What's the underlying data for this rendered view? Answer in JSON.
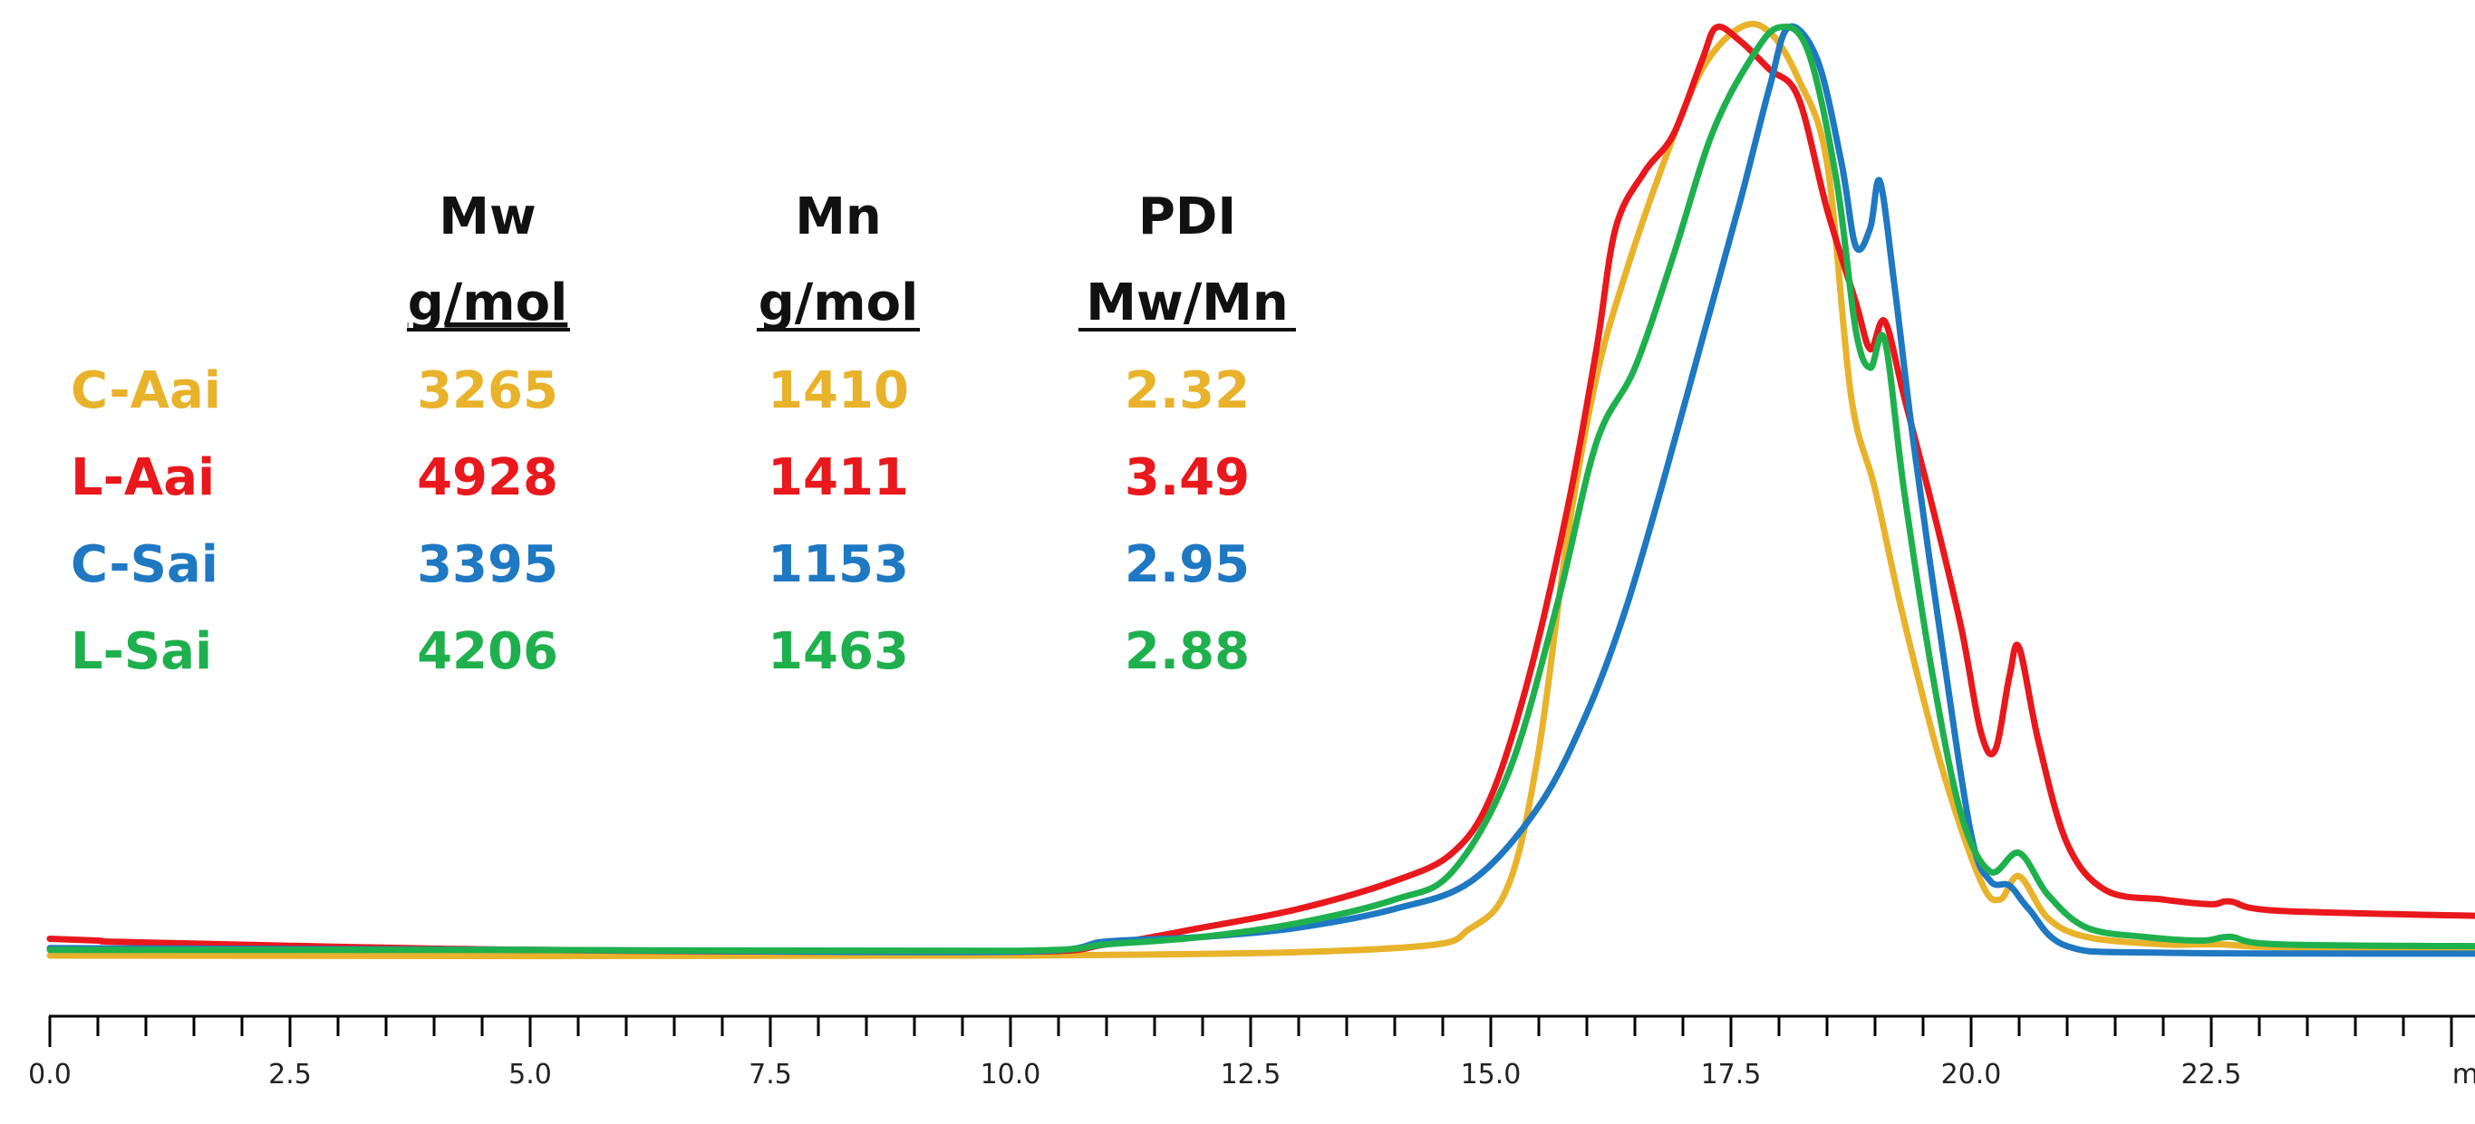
{
  "chart_data": {
    "type": "line",
    "title": "",
    "xlabel": "min",
    "ylabel": "",
    "xlim": [
      0.0,
      25.5
    ],
    "ylim": [
      0,
      100
    ],
    "grid": false,
    "x_ticks_labeled": [
      "0.0",
      "2.5",
      "5.0",
      "7.5",
      "10.0",
      "12.5",
      "15.0",
      "17.5",
      "20.0",
      "22.5"
    ],
    "x_unit_label": "min",
    "minor_tick_step": 0.5,
    "series": [
      {
        "name": "C-Aai",
        "color": "#E8B22A",
        "points": [
          [
            0,
            0
          ],
          [
            10,
            0
          ],
          [
            14,
            0.8
          ],
          [
            14.8,
            3
          ],
          [
            15.2,
            8
          ],
          [
            15.5,
            22
          ],
          [
            15.8,
            45
          ],
          [
            16.1,
            62
          ],
          [
            16.4,
            73
          ],
          [
            16.8,
            85
          ],
          [
            17.2,
            95
          ],
          [
            17.6,
            99.5
          ],
          [
            17.9,
            99
          ],
          [
            18.2,
            94
          ],
          [
            18.5,
            85
          ],
          [
            18.75,
            60
          ],
          [
            19.0,
            50
          ],
          [
            19.3,
            36
          ],
          [
            19.7,
            20
          ],
          [
            20.1,
            8
          ],
          [
            20.3,
            6
          ],
          [
            20.5,
            8.5
          ],
          [
            20.8,
            4
          ],
          [
            21.2,
            2
          ],
          [
            22.0,
            1.2
          ],
          [
            22.6,
            1.2
          ],
          [
            23.2,
            0.9
          ],
          [
            25.5,
            0.8
          ]
        ]
      },
      {
        "name": "L-Aai",
        "color": "#E8181C",
        "points": [
          [
            0,
            1.8
          ],
          [
            0.5,
            1.6
          ],
          [
            1,
            1.4
          ],
          [
            5,
            0.6
          ],
          [
            10,
            0.4
          ],
          [
            11,
            1.2
          ],
          [
            12,
            3
          ],
          [
            13,
            5
          ],
          [
            14,
            8
          ],
          [
            14.6,
            11
          ],
          [
            15.0,
            17
          ],
          [
            15.4,
            30
          ],
          [
            15.8,
            48
          ],
          [
            16.1,
            65
          ],
          [
            16.3,
            78
          ],
          [
            16.6,
            84
          ],
          [
            16.9,
            88
          ],
          [
            17.2,
            96
          ],
          [
            17.35,
            99.5
          ],
          [
            17.6,
            98
          ],
          [
            17.9,
            95
          ],
          [
            18.2,
            92
          ],
          [
            18.5,
            80
          ],
          [
            18.8,
            70
          ],
          [
            18.95,
            65
          ],
          [
            19.1,
            68
          ],
          [
            19.3,
            60
          ],
          [
            19.6,
            48
          ],
          [
            19.9,
            35
          ],
          [
            20.1,
            24
          ],
          [
            20.25,
            22
          ],
          [
            20.4,
            30
          ],
          [
            20.5,
            33
          ],
          [
            20.7,
            23
          ],
          [
            21.0,
            12
          ],
          [
            21.4,
            7
          ],
          [
            22.0,
            6
          ],
          [
            22.5,
            5.5
          ],
          [
            22.7,
            5.8
          ],
          [
            23.2,
            4.8
          ],
          [
            25.5,
            4.2
          ]
        ]
      },
      {
        "name": "C-Sai",
        "color": "#1E78C2",
        "points": [
          [
            0,
            0.8
          ],
          [
            5,
            0.6
          ],
          [
            10,
            0.4
          ],
          [
            11,
            1.5
          ],
          [
            12,
            2
          ],
          [
            13,
            3
          ],
          [
            14,
            5
          ],
          [
            14.8,
            8
          ],
          [
            15.5,
            16
          ],
          [
            16,
            26
          ],
          [
            16.4,
            37
          ],
          [
            16.8,
            51
          ],
          [
            17.2,
            66
          ],
          [
            17.6,
            81
          ],
          [
            17.9,
            93
          ],
          [
            18.1,
            99.5
          ],
          [
            18.4,
            96
          ],
          [
            18.65,
            85
          ],
          [
            18.8,
            76
          ],
          [
            18.95,
            78
          ],
          [
            19.05,
            83
          ],
          [
            19.2,
            72
          ],
          [
            19.4,
            55
          ],
          [
            19.7,
            33
          ],
          [
            20.0,
            13
          ],
          [
            20.2,
            8
          ],
          [
            20.4,
            7.5
          ],
          [
            20.6,
            5
          ],
          [
            21.0,
            1
          ],
          [
            22.0,
            0.3
          ],
          [
            25.5,
            0.2
          ]
        ]
      },
      {
        "name": "L-Sai",
        "color": "#1FB04E",
        "points": [
          [
            0,
            0.6
          ],
          [
            5,
            0.6
          ],
          [
            10,
            0.5
          ],
          [
            11,
            1.2
          ],
          [
            12,
            2
          ],
          [
            13,
            3.5
          ],
          [
            14,
            6
          ],
          [
            14.6,
            9
          ],
          [
            15.2,
            20
          ],
          [
            15.7,
            38
          ],
          [
            16.1,
            55
          ],
          [
            16.5,
            63
          ],
          [
            16.9,
            75
          ],
          [
            17.3,
            88
          ],
          [
            17.7,
            96
          ],
          [
            18.0,
            99.5
          ],
          [
            18.3,
            97
          ],
          [
            18.6,
            83
          ],
          [
            18.8,
            67
          ],
          [
            18.95,
            63
          ],
          [
            19.1,
            66
          ],
          [
            19.3,
            50
          ],
          [
            19.6,
            30
          ],
          [
            19.9,
            15
          ],
          [
            20.2,
            9
          ],
          [
            20.5,
            11
          ],
          [
            20.8,
            6.5
          ],
          [
            21.2,
            3
          ],
          [
            21.8,
            2
          ],
          [
            22.4,
            1.6
          ],
          [
            22.7,
            2
          ],
          [
            23.2,
            1.2
          ],
          [
            25.5,
            1
          ]
        ]
      }
    ]
  },
  "table": {
    "headers": [
      {
        "line1": "Mw",
        "line2": "g/mol"
      },
      {
        "line1": "Mn",
        "line2": "g/mol"
      },
      {
        "line1": "PDI",
        "line2": "Mw/Mn"
      }
    ],
    "rows": [
      {
        "name": "C-Aai",
        "mw": "3265",
        "mn": "1410",
        "pdi": "2.32",
        "color": "#E8B22A"
      },
      {
        "name": "L-Aai",
        "mw": "4928",
        "mn": "1411",
        "pdi": "3.49",
        "color": "#E8181C"
      },
      {
        "name": "C-Sai",
        "mw": "3395",
        "mn": "1153",
        "pdi": "2.95",
        "color": "#1E78C2"
      },
      {
        "name": "L-Sai",
        "mw": "4206",
        "mn": "1463",
        "pdi": "2.88",
        "color": "#1FB04E"
      }
    ]
  }
}
